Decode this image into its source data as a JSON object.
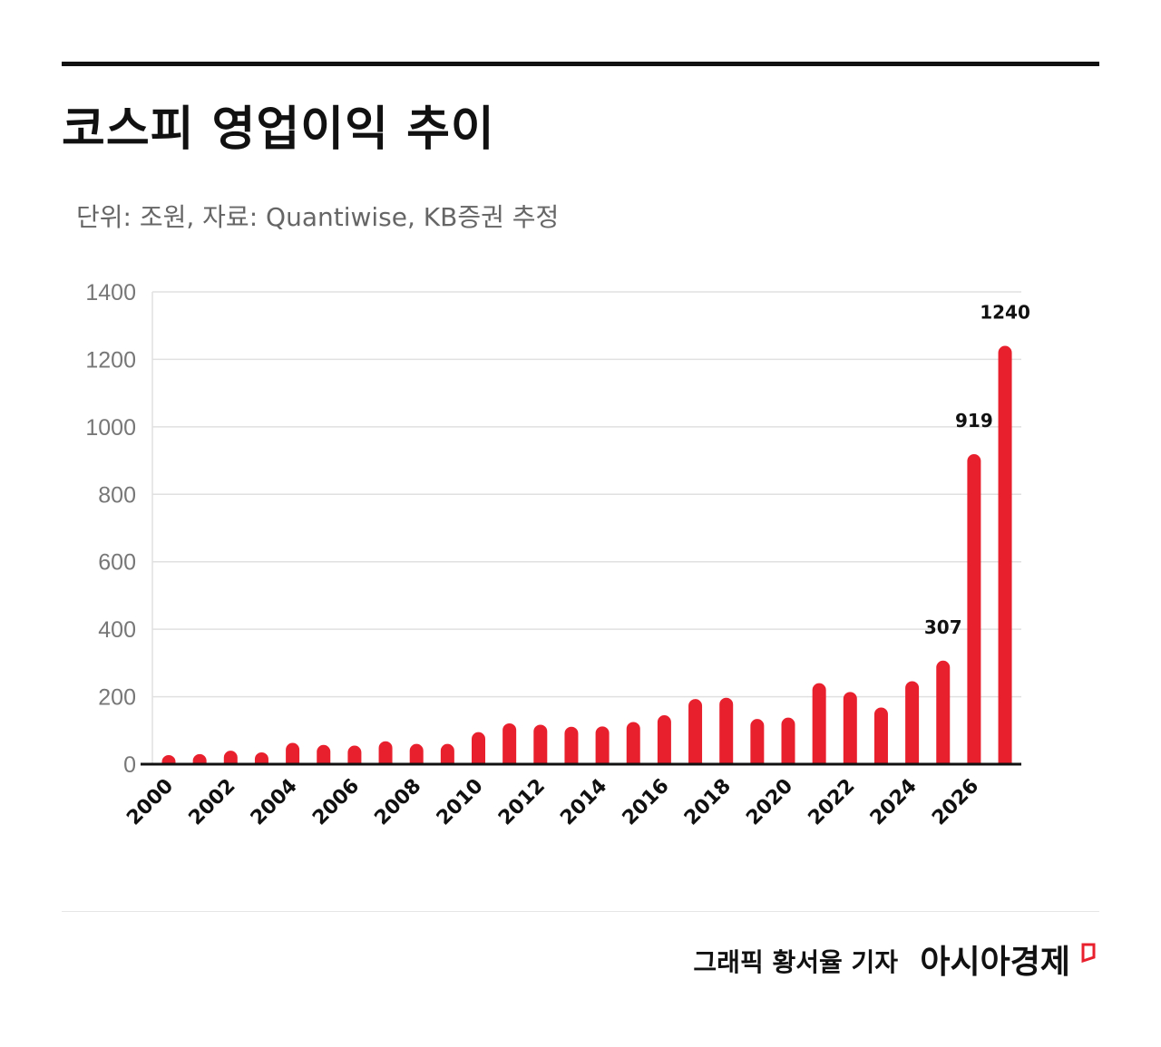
{
  "header": {
    "title": "코스피 영업이익 추이",
    "subtitle": "단위: 조원, 자료: Quantiwise, KB증권 추정"
  },
  "footer": {
    "credit": "그래픽  황서율 기자",
    "brand": "아시아경제"
  },
  "colors": {
    "bar": "#e8202e",
    "axis": "#111111",
    "grid": "#e0e0e0",
    "tick_text": "#777777",
    "brand_mark": "#e8202e"
  },
  "chart_data": {
    "type": "bar",
    "categories": [
      "2000",
      "2001",
      "2002",
      "2003",
      "2004",
      "2005",
      "2006",
      "2007",
      "2008",
      "2009",
      "2010",
      "2011",
      "2012",
      "2013",
      "2014",
      "2015",
      "2016",
      "2017",
      "2018",
      "2019",
      "2020",
      "2021",
      "2022",
      "2023",
      "2024",
      "2025",
      "2026",
      "2027"
    ],
    "x_tick_labels": [
      "2000",
      "2002",
      "2004",
      "2006",
      "2008",
      "2010",
      "2012",
      "2014",
      "2016",
      "2018",
      "2020",
      "2022",
      "2024",
      "2026"
    ],
    "values": [
      27,
      30,
      40,
      35,
      63,
      57,
      55,
      68,
      60,
      60,
      95,
      121,
      117,
      111,
      112,
      125,
      145,
      193,
      197,
      134,
      138,
      240,
      214,
      168,
      246,
      307,
      919,
      1240
    ],
    "data_labels": [
      {
        "category": "2025",
        "text": "307"
      },
      {
        "category": "2026",
        "text": "919"
      },
      {
        "category": "2027",
        "text": "1240"
      }
    ],
    "ylim": [
      0,
      1400
    ],
    "y_ticks": [
      0,
      200,
      400,
      600,
      800,
      1000,
      1200,
      1400
    ],
    "xlabel": "",
    "ylabel": "",
    "grid": true,
    "legend": "none"
  }
}
